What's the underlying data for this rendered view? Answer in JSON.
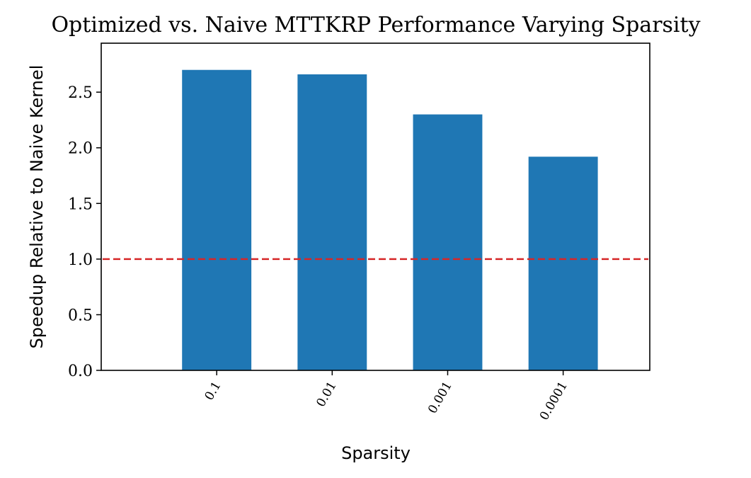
{
  "chart_data": {
    "type": "bar",
    "title": "Optimized vs. Naive MTTKRP Performance Varying Sparsity",
    "xlabel": "Sparsity",
    "ylabel": "Speedup Relative to Naive Kernel",
    "categories": [
      "0.1",
      "0.01",
      "0.001",
      "0.0001"
    ],
    "values": [
      2.7,
      2.66,
      2.3,
      1.92
    ],
    "ylim": [
      0,
      2.94
    ],
    "xlim": [
      -1,
      3.75
    ],
    "yticks": [
      0.0,
      0.5,
      1.0,
      1.5,
      2.0,
      2.5
    ],
    "ytick_labels": [
      "0.0",
      "0.5",
      "1.0",
      "1.5",
      "2.0",
      "2.5"
    ],
    "bar_color": "#1f77b4",
    "reference_line": {
      "y": 1.0,
      "style": "dashed",
      "color": "#d62728"
    },
    "grid": false,
    "legend": "none",
    "x_tick_rotation_deg": 60
  }
}
